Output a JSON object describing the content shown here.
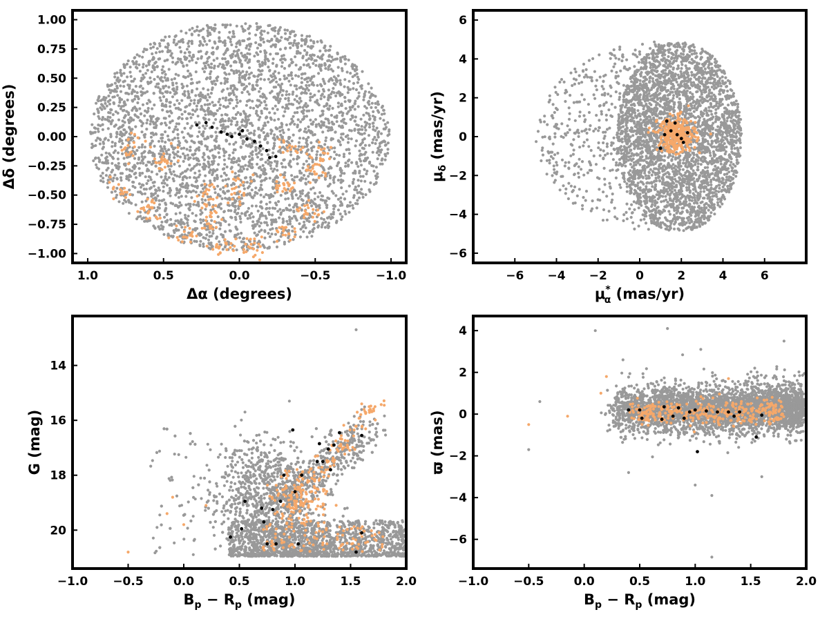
{
  "colors": {
    "field": "#999999",
    "members": "#f5a86a",
    "core": "#000000"
  },
  "chart_data": [
    {
      "type": "scatter",
      "id": "sky",
      "xlabel_main": "Δα",
      "xlabel_unit": "(degrees)",
      "ylabel_main": "Δδ",
      "ylabel_unit": "(degrees)",
      "xlim": [
        1.1,
        -1.1
      ],
      "ylim": [
        -1.08,
        1.08
      ],
      "x_inverted": true,
      "xticks": [
        1.0,
        0.5,
        0.0,
        -0.5,
        -1.0
      ],
      "xtick_labels": [
        "1.0",
        "0.5",
        "0.0",
        "−0.5",
        "−1.0"
      ],
      "yticks": [
        -1.0,
        -0.75,
        -0.5,
        -0.25,
        0.0,
        0.25,
        0.5,
        0.75,
        1.0
      ],
      "ytick_labels": [
        "−1.00",
        "−0.75",
        "−0.50",
        "−0.25",
        "0.00",
        "0.25",
        "0.50",
        "0.75",
        "1.00"
      ],
      "grid": false,
      "series": [
        {
          "role": "field",
          "distribution": "uniform disk",
          "center": [
            0.0,
            0.0
          ],
          "radius": [
            1.0,
            0.98
          ],
          "approx_count": 3500
        },
        {
          "role": "members",
          "distribution": "clumps",
          "clumps": [
            [
              0.7,
              -0.1
            ],
            [
              0.5,
              -0.2
            ],
            [
              0.78,
              -0.45
            ],
            [
              0.6,
              -0.62
            ],
            [
              0.35,
              -0.82
            ],
            [
              0.2,
              -0.72
            ],
            [
              0.1,
              -0.95
            ],
            [
              -0.1,
              -0.95
            ],
            [
              -0.3,
              -0.8
            ],
            [
              -0.45,
              -0.65
            ],
            [
              0.0,
              -0.45
            ],
            [
              0.2,
              -0.5
            ],
            [
              -0.3,
              -0.4
            ],
            [
              -0.5,
              -0.3
            ],
            [
              -0.35,
              -0.1
            ],
            [
              -0.55,
              -0.15
            ]
          ]
        },
        {
          "role": "core",
          "distribution": "chain",
          "points": [
            [
              0.28,
              0.1
            ],
            [
              0.22,
              0.12
            ],
            [
              0.18,
              0.08
            ],
            [
              0.12,
              0.04
            ],
            [
              0.05,
              0.0
            ],
            [
              0.0,
              0.02
            ],
            [
              -0.05,
              -0.02
            ],
            [
              -0.1,
              -0.04
            ],
            [
              -0.14,
              -0.08
            ],
            [
              -0.18,
              -0.12
            ],
            [
              -0.2,
              -0.18
            ],
            [
              -0.24,
              -0.17
            ],
            [
              -0.02,
              0.05
            ],
            [
              0.08,
              0.02
            ]
          ]
        }
      ]
    },
    {
      "type": "scatter",
      "id": "proper-motion",
      "xlabel_main": "μ",
      "xlabel_sub": "α",
      "xlabel_sup": "*",
      "xlabel_unit": "(mas/yr)",
      "ylabel_main": "μ",
      "ylabel_sub": "δ",
      "ylabel_unit": "(mas/yr)",
      "xlim": [
        -8.0,
        8.0
      ],
      "ylim": [
        -6.5,
        6.5
      ],
      "xticks": [
        -6,
        -4,
        -2,
        0,
        2,
        4,
        6
      ],
      "xtick_labels": [
        "−6",
        "−4",
        "−2",
        "0",
        "2",
        "4",
        "6"
      ],
      "yticks": [
        -6,
        -4,
        -2,
        0,
        2,
        4,
        6
      ],
      "ytick_labels": [
        "−6",
        "−4",
        "−2",
        "0",
        "2",
        "4",
        "6"
      ],
      "grid": false,
      "series": [
        {
          "role": "field",
          "distribution": "disk",
          "center": [
            1.9,
            0.0
          ],
          "radius": [
            3.0,
            4.9
          ],
          "approx_count": 3600
        },
        {
          "role": "members",
          "distribution": "gaussian",
          "center": [
            1.8,
            0.1
          ],
          "sigma": [
            0.45,
            0.45
          ],
          "approx_count": 350
        },
        {
          "role": "core",
          "distribution": "points",
          "points": [
            [
              1.0,
              -0.6
            ],
            [
              1.3,
              0.8
            ],
            [
              1.7,
              0.7
            ],
            [
              1.8,
              0.1
            ],
            [
              2.0,
              -0.1
            ],
            [
              2.1,
              -0.3
            ],
            [
              1.5,
              0.3
            ],
            [
              1.2,
              0.1
            ],
            [
              2.3,
              0.2
            ]
          ]
        }
      ]
    },
    {
      "type": "scatter",
      "id": "cmd",
      "xlabel_main": "B",
      "xlabel_sub1": "p",
      "xlabel_mid": " − R",
      "xlabel_sub2": "p",
      "xlabel_unit": "(mag)",
      "ylabel_main": "G",
      "ylabel_unit": "(mag)",
      "xlim": [
        -1.0,
        2.0
      ],
      "ylim": [
        21.4,
        12.2
      ],
      "y_inverted": true,
      "xticks": [
        -1.0,
        -0.5,
        0.0,
        0.5,
        1.0,
        1.5,
        2.0
      ],
      "xtick_labels": [
        "−1.0",
        "−0.5",
        "0.0",
        "0.5",
        "1.0",
        "1.5",
        "2.0"
      ],
      "yticks": [
        14,
        16,
        18,
        20
      ],
      "ytick_labels": [
        "14",
        "16",
        "18",
        "20"
      ],
      "grid": false,
      "series": [
        {
          "role": "field",
          "distribution": "cmd",
          "approx_count": 3600
        },
        {
          "role": "members",
          "distribution": "cmd-sequence",
          "turnoff": [
            1.05,
            18.8
          ],
          "approx_count": 330
        },
        {
          "role": "core",
          "distribution": "points",
          "points": [
            [
              0.42,
              20.25
            ],
            [
              0.52,
              19.95
            ],
            [
              0.55,
              18.95
            ],
            [
              0.7,
              19.2
            ],
            [
              0.72,
              19.7
            ],
            [
              0.75,
              20.5
            ],
            [
              0.8,
              19.25
            ],
            [
              0.83,
              20.5
            ],
            [
              0.87,
              18.95
            ],
            [
              0.9,
              18.0
            ],
            [
              1.0,
              18.6
            ],
            [
              1.03,
              20.5
            ],
            [
              1.06,
              18.0
            ],
            [
              1.2,
              17.5
            ],
            [
              1.22,
              16.85
            ],
            [
              1.25,
              17.5
            ],
            [
              1.3,
              17.05
            ],
            [
              1.32,
              17.8
            ],
            [
              1.35,
              16.9
            ],
            [
              1.4,
              16.45
            ],
            [
              1.55,
              20.8
            ],
            [
              1.6,
              20.1
            ],
            [
              1.6,
              16.55
            ],
            [
              0.98,
              16.35
            ]
          ]
        }
      ]
    },
    {
      "type": "scatter",
      "id": "parallax",
      "xlabel_main": "B",
      "xlabel_sub1": "p",
      "xlabel_mid": " − R",
      "xlabel_sub2": "p",
      "xlabel_unit": "(mag)",
      "ylabel_main": "ϖ",
      "ylabel_unit": "(mas)",
      "xlim": [
        -1.0,
        2.0
      ],
      "ylim": [
        -7.4,
        4.7
      ],
      "xticks": [
        -1.0,
        -0.5,
        0.0,
        0.5,
        1.0,
        1.5,
        2.0
      ],
      "xtick_labels": [
        "−1.0",
        "−0.5",
        "0.0",
        "0.5",
        "1.0",
        "1.5",
        "2.0"
      ],
      "yticks": [
        -6,
        -4,
        -2,
        0,
        2,
        4
      ],
      "ytick_labels": [
        "−6",
        "−4",
        "−2",
        "0",
        "2",
        "4"
      ],
      "grid": false,
      "series": [
        {
          "role": "field",
          "distribution": "band",
          "center_y": 0.2,
          "approx_count": 3600
        },
        {
          "role": "members",
          "distribution": "band",
          "center_y": 0.1,
          "approx_count": 320
        },
        {
          "role": "core",
          "distribution": "points",
          "points": [
            [
              0.4,
              0.2
            ],
            [
              0.5,
              0.2
            ],
            [
              0.52,
              -0.2
            ],
            [
              0.7,
              -0.25
            ],
            [
              0.72,
              0.35
            ],
            [
              0.8,
              -0.1
            ],
            [
              0.85,
              0.3
            ],
            [
              0.9,
              -0.2
            ],
            [
              0.95,
              0.1
            ],
            [
              1.0,
              0.2
            ],
            [
              1.02,
              -1.8
            ],
            [
              1.1,
              0.15
            ],
            [
              1.2,
              0.1
            ],
            [
              1.3,
              0.1
            ],
            [
              1.35,
              -0.1
            ],
            [
              1.4,
              0.1
            ],
            [
              1.55,
              -1.1
            ],
            [
              1.6,
              -0.05
            ]
          ]
        }
      ]
    }
  ]
}
